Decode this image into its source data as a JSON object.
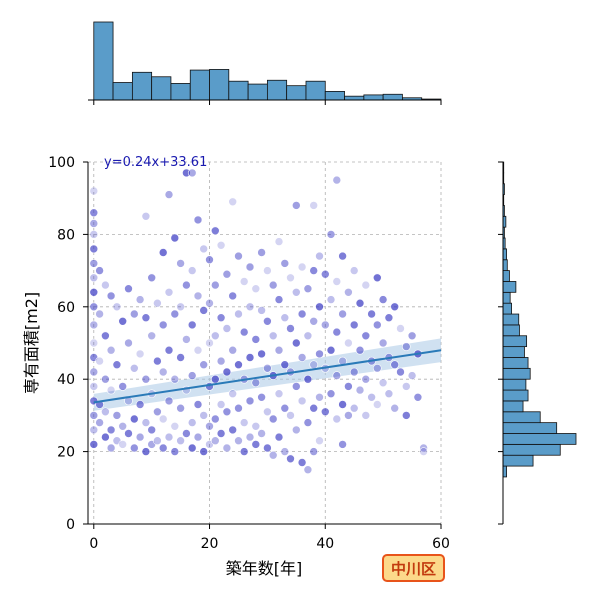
{
  "chart_data": {
    "type": "scatter",
    "title": "",
    "xlabel": "築年数[年]",
    "ylabel": "専有面積[m2]",
    "xlim": [
      -1,
      60
    ],
    "ylim": [
      0,
      100
    ],
    "xticks": [
      0,
      20,
      40,
      60
    ],
    "yticks": [
      0,
      20,
      40,
      60,
      80,
      100
    ],
    "grid": true,
    "regression": {
      "label": "y=0.24x+33.61",
      "slope": 0.24,
      "intercept": 33.61,
      "color": "#2a7ab8",
      "band_color": "#a9c9e6"
    },
    "point_color": "#3b3bc4",
    "point_edge_color": "#ffffff",
    "points": [
      [
        0,
        92
      ],
      [
        0,
        86
      ],
      [
        0,
        83
      ],
      [
        0,
        80
      ],
      [
        0,
        76
      ],
      [
        0,
        72
      ],
      [
        0,
        68
      ],
      [
        0,
        64
      ],
      [
        0,
        60
      ],
      [
        0,
        55
      ],
      [
        0,
        50
      ],
      [
        0,
        46
      ],
      [
        0,
        42
      ],
      [
        0,
        38
      ],
      [
        0,
        34
      ],
      [
        0,
        30
      ],
      [
        0,
        26
      ],
      [
        0,
        22
      ],
      [
        1,
        70
      ],
      [
        1,
        58
      ],
      [
        1,
        45
      ],
      [
        1,
        33
      ],
      [
        1,
        28
      ],
      [
        2,
        66
      ],
      [
        2,
        52
      ],
      [
        2,
        40
      ],
      [
        2,
        31
      ],
      [
        2,
        24
      ],
      [
        3,
        63
      ],
      [
        3,
        48
      ],
      [
        3,
        37
      ],
      [
        3,
        26
      ],
      [
        3,
        21
      ],
      [
        4,
        60
      ],
      [
        4,
        44
      ],
      [
        4,
        30
      ],
      [
        4,
        23
      ],
      [
        5,
        56
      ],
      [
        5,
        38
      ],
      [
        5,
        27
      ],
      [
        5,
        22
      ],
      [
        6,
        65
      ],
      [
        6,
        50
      ],
      [
        6,
        34
      ],
      [
        6,
        25
      ],
      [
        7,
        58
      ],
      [
        7,
        43
      ],
      [
        7,
        29
      ],
      [
        7,
        21
      ],
      [
        8,
        62
      ],
      [
        8,
        47
      ],
      [
        8,
        33
      ],
      [
        8,
        24
      ],
      [
        9,
        85
      ],
      [
        9,
        57
      ],
      [
        9,
        40
      ],
      [
        9,
        28
      ],
      [
        9,
        20
      ],
      [
        10,
        68
      ],
      [
        10,
        52
      ],
      [
        10,
        36
      ],
      [
        10,
        26
      ],
      [
        10,
        22
      ],
      [
        11,
        61
      ],
      [
        11,
        45
      ],
      [
        11,
        31
      ],
      [
        11,
        23
      ],
      [
        12,
        75
      ],
      [
        12,
        55
      ],
      [
        12,
        42
      ],
      [
        12,
        29
      ],
      [
        12,
        21
      ],
      [
        13,
        91
      ],
      [
        13,
        64
      ],
      [
        13,
        48
      ],
      [
        13,
        34
      ],
      [
        13,
        24
      ],
      [
        14,
        79
      ],
      [
        14,
        58
      ],
      [
        14,
        40
      ],
      [
        14,
        27
      ],
      [
        14,
        20
      ],
      [
        15,
        72
      ],
      [
        15,
        60
      ],
      [
        15,
        46
      ],
      [
        15,
        32
      ],
      [
        15,
        23
      ],
      [
        16,
        97
      ],
      [
        16,
        66
      ],
      [
        16,
        51
      ],
      [
        16,
        37
      ],
      [
        16,
        25
      ],
      [
        17,
        97
      ],
      [
        17,
        70
      ],
      [
        17,
        55
      ],
      [
        17,
        41
      ],
      [
        17,
        28
      ],
      [
        17,
        21
      ],
      [
        18,
        84
      ],
      [
        18,
        63
      ],
      [
        18,
        48
      ],
      [
        18,
        33
      ],
      [
        18,
        24
      ],
      [
        19,
        76
      ],
      [
        19,
        59
      ],
      [
        19,
        44
      ],
      [
        19,
        30
      ],
      [
        19,
        20
      ],
      [
        20,
        73
      ],
      [
        20,
        61
      ],
      [
        20,
        50
      ],
      [
        20,
        38
      ],
      [
        20,
        27
      ],
      [
        20,
        22
      ],
      [
        21,
        81
      ],
      [
        21,
        66
      ],
      [
        21,
        52
      ],
      [
        21,
        40
      ],
      [
        21,
        29
      ],
      [
        21,
        23
      ],
      [
        22,
        77
      ],
      [
        22,
        57
      ],
      [
        22,
        45
      ],
      [
        22,
        33
      ],
      [
        22,
        25
      ],
      [
        23,
        69
      ],
      [
        23,
        54
      ],
      [
        23,
        42
      ],
      [
        23,
        31
      ],
      [
        23,
        21
      ],
      [
        24,
        89
      ],
      [
        24,
        63
      ],
      [
        24,
        48
      ],
      [
        24,
        36
      ],
      [
        24,
        26
      ],
      [
        25,
        74
      ],
      [
        25,
        58
      ],
      [
        25,
        44
      ],
      [
        25,
        32
      ],
      [
        25,
        23
      ],
      [
        26,
        67
      ],
      [
        26,
        53
      ],
      [
        26,
        40
      ],
      [
        26,
        28
      ],
      [
        26,
        20
      ],
      [
        27,
        71
      ],
      [
        27,
        60
      ],
      [
        27,
        46
      ],
      [
        27,
        34
      ],
      [
        27,
        24
      ],
      [
        28,
        65
      ],
      [
        28,
        51
      ],
      [
        28,
        39
      ],
      [
        28,
        27
      ],
      [
        28,
        22
      ],
      [
        29,
        75
      ],
      [
        29,
        59
      ],
      [
        29,
        47
      ],
      [
        29,
        35
      ],
      [
        29,
        25
      ],
      [
        30,
        70
      ],
      [
        30,
        56
      ],
      [
        30,
        43
      ],
      [
        30,
        31
      ],
      [
        30,
        21
      ],
      [
        31,
        66
      ],
      [
        31,
        52
      ],
      [
        31,
        41
      ],
      [
        31,
        29
      ],
      [
        31,
        19
      ],
      [
        32,
        78
      ],
      [
        32,
        62
      ],
      [
        32,
        48
      ],
      [
        32,
        36
      ],
      [
        32,
        24
      ],
      [
        33,
        72
      ],
      [
        33,
        57
      ],
      [
        33,
        44
      ],
      [
        33,
        32
      ],
      [
        33,
        20
      ],
      [
        34,
        68
      ],
      [
        34,
        54
      ],
      [
        34,
        42
      ],
      [
        34,
        30
      ],
      [
        34,
        18
      ],
      [
        35,
        88
      ],
      [
        35,
        64
      ],
      [
        35,
        50
      ],
      [
        35,
        38
      ],
      [
        35,
        26
      ],
      [
        36,
        71
      ],
      [
        36,
        58
      ],
      [
        36,
        46
      ],
      [
        36,
        34
      ],
      [
        36,
        17
      ],
      [
        37,
        65
      ],
      [
        37,
        52
      ],
      [
        37,
        40
      ],
      [
        37,
        28
      ],
      [
        37,
        15
      ],
      [
        38,
        88
      ],
      [
        38,
        70
      ],
      [
        38,
        56
      ],
      [
        38,
        44
      ],
      [
        38,
        32
      ],
      [
        38,
        20
      ],
      [
        39,
        74
      ],
      [
        39,
        60
      ],
      [
        39,
        47
      ],
      [
        39,
        35
      ],
      [
        39,
        23
      ],
      [
        40,
        69
      ],
      [
        40,
        55
      ],
      [
        40,
        43
      ],
      [
        40,
        31
      ],
      [
        41,
        80
      ],
      [
        41,
        62
      ],
      [
        41,
        48
      ],
      [
        41,
        36
      ],
      [
        42,
        95
      ],
      [
        42,
        67
      ],
      [
        42,
        53
      ],
      [
        42,
        41
      ],
      [
        42,
        29
      ],
      [
        43,
        74
      ],
      [
        43,
        58
      ],
      [
        43,
        45
      ],
      [
        43,
        33
      ],
      [
        43,
        22
      ],
      [
        44,
        64
      ],
      [
        44,
        50
      ],
      [
        44,
        38
      ],
      [
        44,
        30
      ],
      [
        45,
        70
      ],
      [
        45,
        55
      ],
      [
        45,
        42
      ],
      [
        45,
        32
      ],
      [
        46,
        61
      ],
      [
        46,
        48
      ],
      [
        46,
        37
      ],
      [
        47,
        66
      ],
      [
        47,
        52
      ],
      [
        47,
        40
      ],
      [
        47,
        30
      ],
      [
        48,
        58
      ],
      [
        48,
        45
      ],
      [
        48,
        35
      ],
      [
        49,
        68
      ],
      [
        49,
        55
      ],
      [
        49,
        43
      ],
      [
        49,
        33
      ],
      [
        50,
        62
      ],
      [
        50,
        50
      ],
      [
        50,
        39
      ],
      [
        51,
        57
      ],
      [
        51,
        46
      ],
      [
        51,
        36
      ],
      [
        52,
        60
      ],
      [
        52,
        44
      ],
      [
        52,
        32
      ],
      [
        53,
        54
      ],
      [
        53,
        42
      ],
      [
        54,
        49
      ],
      [
        54,
        38
      ],
      [
        54,
        30
      ],
      [
        55,
        52
      ],
      [
        55,
        41
      ],
      [
        56,
        47
      ],
      [
        56,
        35
      ],
      [
        57,
        21
      ],
      [
        57,
        20
      ]
    ],
    "top_histogram": {
      "bin_edges": [
        0,
        3.33,
        6.67,
        10,
        13.33,
        16.67,
        20,
        23.33,
        26.67,
        30,
        33.33,
        36.67,
        40,
        43.33,
        46.67,
        50,
        53.33,
        56.67,
        60
      ],
      "counts": [
        245,
        55,
        87,
        73,
        52,
        94,
        96,
        59,
        50,
        62,
        45,
        59,
        27,
        12,
        16,
        18,
        7,
        3
      ],
      "color": "#5a9cc9",
      "edge_color": "#111111"
    },
    "right_histogram": {
      "bin_edges": [
        13,
        16,
        19,
        22,
        25,
        28,
        31,
        34,
        37,
        40,
        43,
        46,
        49,
        52,
        55,
        58,
        61,
        64,
        67,
        70,
        73,
        76,
        79,
        82,
        85,
        88,
        91,
        94,
        97,
        100
      ],
      "counts": [
        5,
        42,
        80,
        102,
        75,
        52,
        28,
        35,
        32,
        38,
        35,
        30,
        33,
        23,
        22,
        12,
        10,
        18,
        9,
        6,
        5,
        3,
        2,
        4,
        2,
        1,
        2,
        1,
        1
      ],
      "color": "#5a9cc9",
      "edge_color": "#111111"
    },
    "badge": {
      "label": "中川区",
      "fill": "#fcd98a",
      "border": "#e8541a",
      "text_color": "#c23a0e"
    }
  }
}
